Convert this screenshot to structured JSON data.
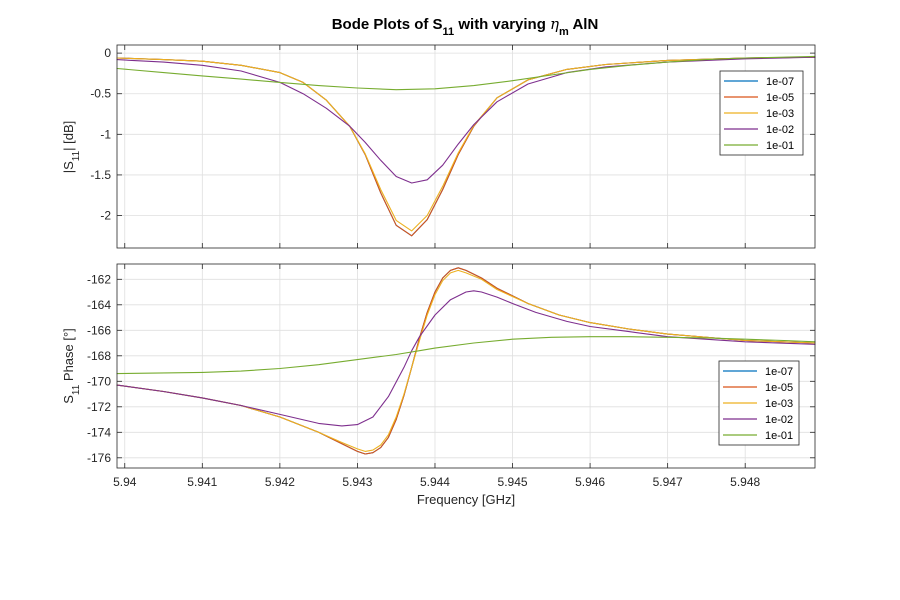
{
  "title": {
    "pre": "Bode Plots of S",
    "sub11": "11",
    "mid": " with varying ",
    "eta": "η",
    "sub_m": "m",
    "post": " AlN"
  },
  "colors": {
    "s1e07": "#0072BD",
    "s1e05": "#D95319",
    "s1e03": "#EDB120",
    "s1e02": "#7E2F8E",
    "s1e01": "#77AC30",
    "grid": "#DFDFDF",
    "axis": "#262626"
  },
  "chart_data": [
    {
      "type": "line",
      "title": "Bode Plots of S11 with varying ηm AlN",
      "xlabel": "",
      "ylabel": "|S11| [dB]",
      "ylabel_parts": {
        "pre": "|S",
        "sub": "11",
        "post": "| [dB]"
      },
      "xlim": [
        5.9399,
        5.9489
      ],
      "ylim": [
        -2.4,
        0.1
      ],
      "yticks": [
        -2,
        -1.5,
        -1,
        -0.5,
        0
      ],
      "ytick_labels": [
        "-2",
        "-1.5",
        "-1",
        "-0.5",
        "0"
      ],
      "grid": true,
      "legend_position": "top-right",
      "series": [
        {
          "name": "1e-07",
          "color": "#0072BD",
          "x": [
            5.9399,
            5.9405,
            5.941,
            5.9415,
            5.942,
            5.9423,
            5.9426,
            5.9429,
            5.9431,
            5.9433,
            5.9435,
            5.9437,
            5.9439,
            5.9441,
            5.9443,
            5.9445,
            5.9448,
            5.9452,
            5.9457,
            5.9462,
            5.947,
            5.948,
            5.9489
          ],
          "y": [
            -0.06,
            -0.08,
            -0.1,
            -0.15,
            -0.24,
            -0.36,
            -0.58,
            -0.9,
            -1.25,
            -1.72,
            -2.12,
            -2.25,
            -2.05,
            -1.68,
            -1.25,
            -0.9,
            -0.55,
            -0.33,
            -0.2,
            -0.14,
            -0.09,
            -0.06,
            -0.05
          ]
        },
        {
          "name": "1e-05",
          "color": "#D95319",
          "x": [
            5.9399,
            5.9405,
            5.941,
            5.9415,
            5.942,
            5.9423,
            5.9426,
            5.9429,
            5.9431,
            5.9433,
            5.9435,
            5.9437,
            5.9439,
            5.9441,
            5.9443,
            5.9445,
            5.9448,
            5.9452,
            5.9457,
            5.9462,
            5.947,
            5.948,
            5.9489
          ],
          "y": [
            -0.06,
            -0.08,
            -0.1,
            -0.15,
            -0.24,
            -0.36,
            -0.58,
            -0.9,
            -1.25,
            -1.72,
            -2.12,
            -2.25,
            -2.05,
            -1.68,
            -1.25,
            -0.9,
            -0.55,
            -0.33,
            -0.2,
            -0.14,
            -0.09,
            -0.06,
            -0.05
          ]
        },
        {
          "name": "1e-03",
          "color": "#EDB120",
          "x": [
            5.9399,
            5.9405,
            5.941,
            5.9415,
            5.942,
            5.9423,
            5.9426,
            5.9429,
            5.9431,
            5.9433,
            5.9435,
            5.9437,
            5.9439,
            5.9441,
            5.9443,
            5.9445,
            5.9448,
            5.9452,
            5.9457,
            5.9462,
            5.947,
            5.948,
            5.9489
          ],
          "y": [
            -0.06,
            -0.08,
            -0.1,
            -0.15,
            -0.24,
            -0.36,
            -0.58,
            -0.9,
            -1.24,
            -1.68,
            -2.06,
            -2.19,
            -2.0,
            -1.64,
            -1.23,
            -0.89,
            -0.55,
            -0.33,
            -0.2,
            -0.14,
            -0.09,
            -0.06,
            -0.05
          ]
        },
        {
          "name": "1e-02",
          "color": "#7E2F8E",
          "x": [
            5.9399,
            5.9405,
            5.941,
            5.9415,
            5.942,
            5.9423,
            5.9426,
            5.9429,
            5.9431,
            5.9433,
            5.9435,
            5.9437,
            5.9439,
            5.9441,
            5.9443,
            5.9445,
            5.9448,
            5.9452,
            5.9457,
            5.9462,
            5.947,
            5.948,
            5.9489
          ],
          "y": [
            -0.08,
            -0.11,
            -0.15,
            -0.22,
            -0.36,
            -0.5,
            -0.68,
            -0.9,
            -1.1,
            -1.32,
            -1.52,
            -1.6,
            -1.56,
            -1.38,
            -1.12,
            -0.88,
            -0.6,
            -0.38,
            -0.24,
            -0.17,
            -0.11,
            -0.07,
            -0.05
          ]
        },
        {
          "name": "1e-01",
          "color": "#77AC30",
          "x": [
            5.9399,
            5.9405,
            5.941,
            5.9415,
            5.942,
            5.9425,
            5.943,
            5.9435,
            5.944,
            5.9445,
            5.945,
            5.9455,
            5.946,
            5.9465,
            5.947,
            5.9475,
            5.948,
            5.9485,
            5.9489
          ],
          "y": [
            -0.19,
            -0.24,
            -0.28,
            -0.32,
            -0.36,
            -0.4,
            -0.43,
            -0.45,
            -0.44,
            -0.4,
            -0.34,
            -0.27,
            -0.2,
            -0.15,
            -0.11,
            -0.08,
            -0.06,
            -0.05,
            -0.04
          ]
        }
      ]
    },
    {
      "type": "line",
      "title": "",
      "xlabel": "Frequency [GHz]",
      "ylabel": "S11 Phase [°]",
      "ylabel_parts": {
        "pre": "S",
        "sub": "11",
        "post": " Phase [°]"
      },
      "xlim": [
        5.9399,
        5.9489
      ],
      "ylim": [
        -176.8,
        -160.8
      ],
      "xticks": [
        5.94,
        5.941,
        5.942,
        5.943,
        5.944,
        5.945,
        5.946,
        5.947,
        5.948
      ],
      "xtick_labels": [
        "5.94",
        "5.941",
        "5.942",
        "5.943",
        "5.944",
        "5.945",
        "5.946",
        "5.947",
        "5.948"
      ],
      "yticks": [
        -176,
        -174,
        -172,
        -170,
        -168,
        -166,
        -164,
        -162
      ],
      "ytick_labels": [
        "-176",
        "-174",
        "-172",
        "-170",
        "-168",
        "-166",
        "-164",
        "-162"
      ],
      "grid": true,
      "legend_position": "bottom-right",
      "series": [
        {
          "name": "1e-07",
          "color": "#0072BD",
          "x": [
            5.9399,
            5.9405,
            5.941,
            5.9415,
            5.942,
            5.9425,
            5.9428,
            5.943,
            5.9431,
            5.9432,
            5.9433,
            5.9434,
            5.9435,
            5.9436,
            5.9437,
            5.9438,
            5.9439,
            5.944,
            5.9441,
            5.9442,
            5.9443,
            5.9444,
            5.9446,
            5.9448,
            5.9452,
            5.9456,
            5.946,
            5.9465,
            5.947,
            5.948,
            5.9489
          ],
          "y": [
            -170.3,
            -170.8,
            -171.3,
            -171.9,
            -172.8,
            -174.0,
            -174.9,
            -175.5,
            -175.7,
            -175.6,
            -175.2,
            -174.4,
            -173.0,
            -171.1,
            -168.9,
            -166.6,
            -164.6,
            -163.0,
            -161.9,
            -161.3,
            -161.1,
            -161.3,
            -161.9,
            -162.7,
            -163.9,
            -164.8,
            -165.4,
            -165.9,
            -166.3,
            -166.8,
            -167.0
          ]
        },
        {
          "name": "1e-05",
          "color": "#D95319",
          "x": [
            5.9399,
            5.9405,
            5.941,
            5.9415,
            5.942,
            5.9425,
            5.9428,
            5.943,
            5.9431,
            5.9432,
            5.9433,
            5.9434,
            5.9435,
            5.9436,
            5.9437,
            5.9438,
            5.9439,
            5.944,
            5.9441,
            5.9442,
            5.9443,
            5.9444,
            5.9446,
            5.9448,
            5.9452,
            5.9456,
            5.946,
            5.9465,
            5.947,
            5.948,
            5.9489
          ],
          "y": [
            -170.3,
            -170.8,
            -171.3,
            -171.9,
            -172.8,
            -174.0,
            -174.9,
            -175.5,
            -175.7,
            -175.6,
            -175.2,
            -174.4,
            -173.0,
            -171.1,
            -168.9,
            -166.6,
            -164.6,
            -163.0,
            -161.9,
            -161.3,
            -161.1,
            -161.3,
            -161.9,
            -162.7,
            -163.9,
            -164.8,
            -165.4,
            -165.9,
            -166.3,
            -166.8,
            -167.0
          ]
        },
        {
          "name": "1e-03",
          "color": "#EDB120",
          "x": [
            5.9399,
            5.9405,
            5.941,
            5.9415,
            5.942,
            5.9425,
            5.9428,
            5.943,
            5.9431,
            5.9432,
            5.9433,
            5.9434,
            5.9435,
            5.9436,
            5.9437,
            5.9438,
            5.9439,
            5.944,
            5.9441,
            5.9442,
            5.9443,
            5.9444,
            5.9446,
            5.9448,
            5.9452,
            5.9456,
            5.946,
            5.9465,
            5.947,
            5.948,
            5.9489
          ],
          "y": [
            -170.3,
            -170.8,
            -171.3,
            -171.9,
            -172.8,
            -174.0,
            -174.8,
            -175.3,
            -175.5,
            -175.4,
            -175.0,
            -174.2,
            -172.8,
            -171.0,
            -168.9,
            -166.8,
            -164.8,
            -163.2,
            -162.1,
            -161.5,
            -161.3,
            -161.5,
            -162.0,
            -162.8,
            -163.9,
            -164.8,
            -165.4,
            -165.9,
            -166.3,
            -166.8,
            -167.0
          ]
        },
        {
          "name": "1e-02",
          "color": "#7E2F8E",
          "x": [
            5.9399,
            5.9405,
            5.941,
            5.9415,
            5.942,
            5.9425,
            5.9428,
            5.943,
            5.9432,
            5.9434,
            5.9436,
            5.9437,
            5.9438,
            5.944,
            5.9442,
            5.9444,
            5.9445,
            5.9446,
            5.9448,
            5.945,
            5.9453,
            5.9457,
            5.946,
            5.9465,
            5.947,
            5.948,
            5.9489
          ],
          "y": [
            -170.3,
            -170.8,
            -171.3,
            -171.9,
            -172.6,
            -173.3,
            -173.5,
            -173.4,
            -172.8,
            -171.2,
            -168.9,
            -167.6,
            -166.5,
            -164.8,
            -163.6,
            -163.0,
            -162.9,
            -163.0,
            -163.4,
            -163.9,
            -164.6,
            -165.3,
            -165.7,
            -166.1,
            -166.5,
            -166.9,
            -167.1
          ]
        },
        {
          "name": "1e-01",
          "color": "#77AC30",
          "x": [
            5.9399,
            5.941,
            5.9415,
            5.942,
            5.9425,
            5.943,
            5.9435,
            5.9438,
            5.944,
            5.9445,
            5.945,
            5.9455,
            5.946,
            5.9465,
            5.947,
            5.9475,
            5.948,
            5.9485,
            5.9489
          ],
          "y": [
            -169.4,
            -169.3,
            -169.2,
            -169.0,
            -168.7,
            -168.3,
            -167.9,
            -167.6,
            -167.4,
            -167.0,
            -166.7,
            -166.55,
            -166.5,
            -166.5,
            -166.55,
            -166.6,
            -166.7,
            -166.8,
            -166.9
          ]
        }
      ]
    }
  ]
}
